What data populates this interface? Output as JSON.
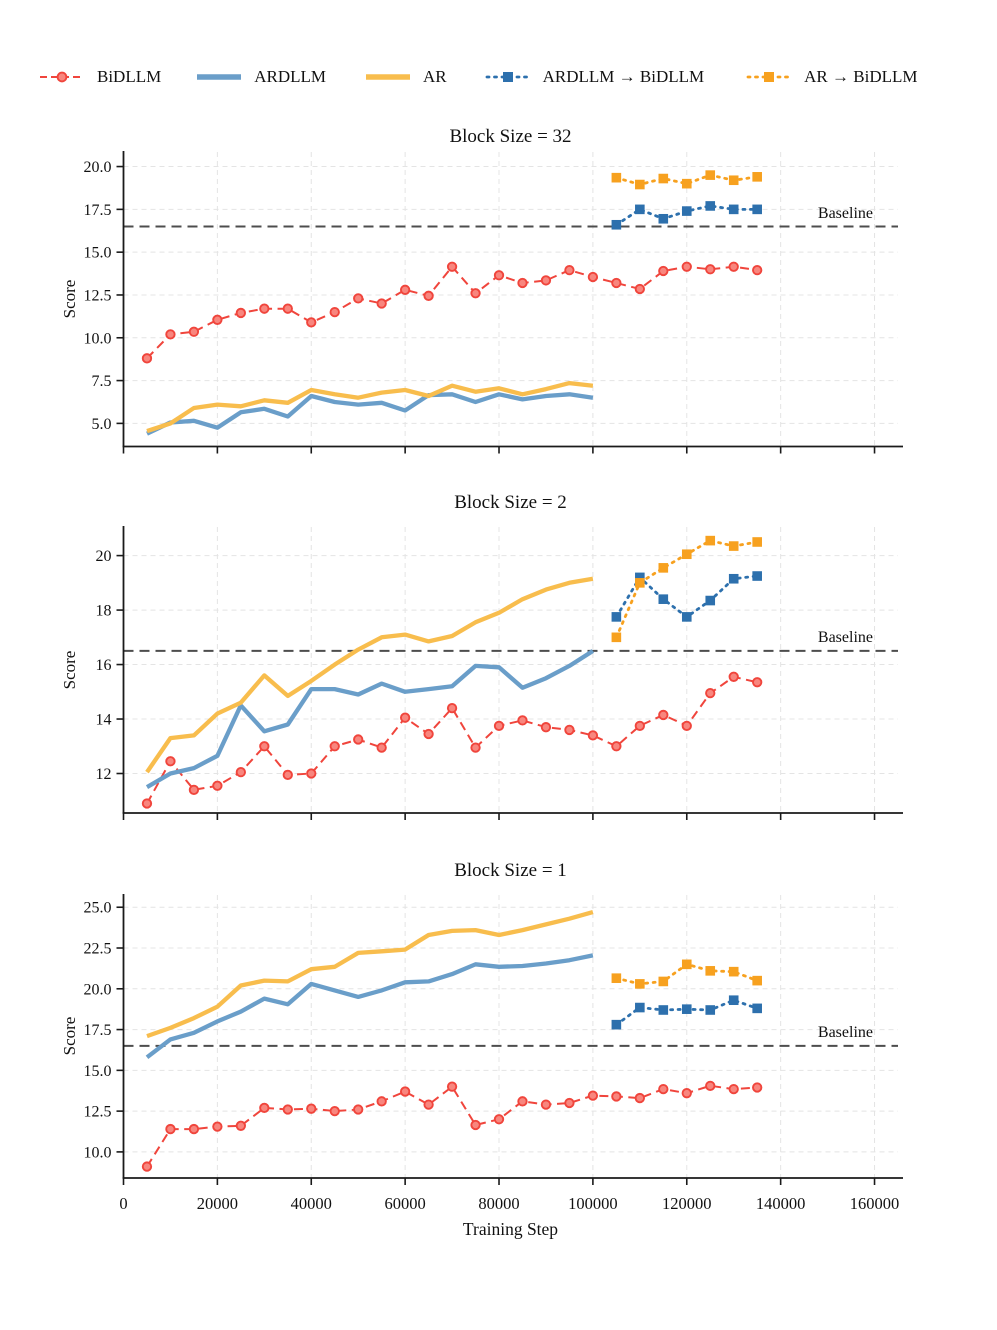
{
  "legend": {
    "items": [
      {
        "id": "bidllm",
        "label": "BiDLLM",
        "color": "#f0453c",
        "marker_fill": "#f8867e",
        "style": "dashed-line-circle"
      },
      {
        "id": "ardllm",
        "label": "ARDLLM",
        "color": "#6a9ec9",
        "style": "solid-line"
      },
      {
        "id": "ar",
        "label": "AR",
        "color": "#f8bd4d",
        "style": "solid-line"
      },
      {
        "id": "ardllm-to-bidllm",
        "label": "ARDLLM → BiDLLM",
        "color": "#2d70ad",
        "style": "dotted-line-square"
      },
      {
        "id": "ar-to-bidllm",
        "label": "AR → BiDLLM",
        "color": "#f7a11f",
        "style": "dotted-line-square"
      }
    ]
  },
  "x_axis": {
    "label": "Training Step",
    "ticks": [
      0,
      20000,
      40000,
      60000,
      80000,
      100000,
      120000,
      140000,
      160000
    ],
    "tick_labels": [
      "0",
      "20000",
      "40000",
      "60000",
      "80000",
      "100000",
      "120000",
      "140000",
      "160000"
    ],
    "xlim": [
      0,
      165000
    ]
  },
  "chart_data": [
    {
      "type": "line",
      "title": "Block Size = 32",
      "ylabel": "Score",
      "xlabel": "",
      "baseline": {
        "label": "Baseline",
        "value": 16.5,
        "color": "#4d4d4d"
      },
      "ylim": [
        3.65,
        20.85
      ],
      "yticks": [
        5,
        7.5,
        10,
        12.5,
        15,
        17.5,
        20
      ],
      "ytick_labels": [
        "5.0",
        "7.5",
        "10.0",
        "12.5",
        "15.0",
        "17.5",
        "20.0"
      ],
      "grid": true,
      "series": [
        {
          "name": "BiDLLM",
          "color": "#f0453c",
          "line": "dashed",
          "marker": "circle",
          "x": [
            5000,
            10000,
            15000,
            20000,
            25000,
            30000,
            35000,
            40000,
            45000,
            50000,
            55000,
            60000,
            65000,
            70000,
            75000,
            80000,
            85000,
            90000,
            95000,
            100000,
            105000,
            110000,
            115000,
            120000,
            125000,
            130000,
            135000
          ],
          "values": [
            8.8,
            10.2,
            10.35,
            11.05,
            11.45,
            11.7,
            11.7,
            10.9,
            11.5,
            12.3,
            12.0,
            12.8,
            12.45,
            14.15,
            12.6,
            13.65,
            13.2,
            13.35,
            13.95,
            13.55,
            13.2,
            12.85,
            13.9,
            14.15,
            14.0,
            14.15,
            13.95
          ]
        },
        {
          "name": "ARDLLM",
          "color": "#6a9ec9",
          "line": "solid",
          "marker": "none",
          "x": [
            5000,
            10000,
            15000,
            20000,
            25000,
            30000,
            35000,
            40000,
            45000,
            50000,
            55000,
            60000,
            65000,
            70000,
            75000,
            80000,
            85000,
            90000,
            95000,
            100000
          ],
          "values": [
            4.4,
            5.05,
            5.15,
            4.75,
            5.65,
            5.85,
            5.4,
            6.6,
            6.25,
            6.1,
            6.2,
            5.75,
            6.65,
            6.7,
            6.25,
            6.7,
            6.4,
            6.6,
            6.7,
            6.5
          ]
        },
        {
          "name": "AR",
          "color": "#f8bd4d",
          "line": "solid",
          "marker": "none",
          "x": [
            5000,
            10000,
            15000,
            20000,
            25000,
            30000,
            35000,
            40000,
            45000,
            50000,
            55000,
            60000,
            65000,
            70000,
            75000,
            80000,
            85000,
            90000,
            95000,
            100000
          ],
          "values": [
            4.55,
            5.0,
            5.9,
            6.1,
            6.0,
            6.35,
            6.2,
            6.95,
            6.7,
            6.5,
            6.8,
            6.95,
            6.6,
            7.2,
            6.85,
            7.05,
            6.7,
            7.0,
            7.35,
            7.2
          ]
        },
        {
          "name": "ARDLLM → BiDLLM",
          "color": "#2d70ad",
          "line": "dotted",
          "marker": "square",
          "x": [
            105000,
            110000,
            115000,
            120000,
            125000,
            130000,
            135000
          ],
          "values": [
            16.6,
            17.5,
            16.95,
            17.4,
            17.7,
            17.5,
            17.5
          ]
        },
        {
          "name": "AR → BiDLLM",
          "color": "#f7a11f",
          "line": "dotted",
          "marker": "square",
          "x": [
            105000,
            110000,
            115000,
            120000,
            125000,
            130000,
            135000
          ],
          "values": [
            19.35,
            18.95,
            19.3,
            19.0,
            19.5,
            19.2,
            19.4
          ]
        }
      ]
    },
    {
      "type": "line",
      "title": "Block Size = 2",
      "ylabel": "Score",
      "xlabel": "",
      "baseline": {
        "label": "Baseline",
        "value": 16.5,
        "color": "#4d4d4d"
      },
      "ylim": [
        10.55,
        21.05
      ],
      "yticks": [
        12,
        14,
        16,
        18,
        20
      ],
      "ytick_labels": [
        "12",
        "14",
        "16",
        "18",
        "20"
      ],
      "grid": true,
      "series": [
        {
          "name": "BiDLLM",
          "color": "#f0453c",
          "line": "dashed",
          "marker": "circle",
          "x": [
            5000,
            10000,
            15000,
            20000,
            25000,
            30000,
            35000,
            40000,
            45000,
            50000,
            55000,
            60000,
            65000,
            70000,
            75000,
            80000,
            85000,
            90000,
            95000,
            100000,
            105000,
            110000,
            115000,
            120000,
            125000,
            130000,
            135000
          ],
          "values": [
            10.9,
            12.45,
            11.4,
            11.55,
            12.05,
            13.0,
            11.95,
            12.0,
            13.0,
            13.25,
            12.95,
            14.05,
            13.45,
            14.4,
            12.95,
            13.75,
            13.95,
            13.7,
            13.6,
            13.4,
            13.0,
            13.75,
            14.15,
            13.75,
            14.95,
            15.55,
            15.35
          ]
        },
        {
          "name": "ARDLLM",
          "color": "#6a9ec9",
          "line": "solid",
          "marker": "none",
          "x": [
            5000,
            10000,
            15000,
            20000,
            25000,
            30000,
            35000,
            40000,
            45000,
            50000,
            55000,
            60000,
            65000,
            70000,
            75000,
            80000,
            85000,
            90000,
            95000,
            100000
          ],
          "values": [
            11.5,
            12.0,
            12.2,
            12.65,
            14.5,
            13.55,
            13.8,
            15.1,
            15.1,
            14.9,
            15.3,
            15.0,
            15.1,
            15.2,
            15.95,
            15.9,
            15.15,
            15.5,
            15.95,
            16.5
          ]
        },
        {
          "name": "AR",
          "color": "#f8bd4d",
          "line": "solid",
          "marker": "none",
          "x": [
            5000,
            10000,
            15000,
            20000,
            25000,
            30000,
            35000,
            40000,
            45000,
            50000,
            55000,
            60000,
            65000,
            70000,
            75000,
            80000,
            85000,
            90000,
            95000,
            100000
          ],
          "values": [
            12.05,
            13.3,
            13.4,
            14.2,
            14.6,
            15.6,
            14.85,
            15.4,
            16.0,
            16.55,
            17.0,
            17.1,
            16.85,
            17.05,
            17.55,
            17.9,
            18.4,
            18.75,
            19.0,
            19.15
          ]
        },
        {
          "name": "ARDLLM → BiDLLM",
          "color": "#2d70ad",
          "line": "dotted",
          "marker": "square",
          "x": [
            105000,
            110000,
            115000,
            120000,
            125000,
            130000,
            135000
          ],
          "values": [
            17.75,
            19.2,
            18.4,
            17.75,
            18.35,
            19.15,
            19.25
          ]
        },
        {
          "name": "AR → BiDLLM",
          "color": "#f7a11f",
          "line": "dotted",
          "marker": "square",
          "x": [
            105000,
            110000,
            115000,
            120000,
            125000,
            130000,
            135000
          ],
          "values": [
            17.0,
            19.0,
            19.55,
            20.05,
            20.55,
            20.35,
            20.5
          ]
        }
      ]
    },
    {
      "type": "line",
      "title": "Block Size = 1",
      "ylabel": "Score",
      "xlabel": "Training Step",
      "baseline": {
        "label": "Baseline",
        "value": 16.5,
        "color": "#4d4d4d"
      },
      "ylim": [
        8.4,
        25.75
      ],
      "yticks": [
        10,
        12.5,
        15,
        17.5,
        20,
        22.5,
        25
      ],
      "ytick_labels": [
        "10.0",
        "12.5",
        "15.0",
        "17.5",
        "20.0",
        "22.5",
        "25.0"
      ],
      "grid": true,
      "series": [
        {
          "name": "BiDLLM",
          "color": "#f0453c",
          "line": "dashed",
          "marker": "circle",
          "x": [
            5000,
            10000,
            15000,
            20000,
            25000,
            30000,
            35000,
            40000,
            45000,
            50000,
            55000,
            60000,
            65000,
            70000,
            75000,
            80000,
            85000,
            90000,
            95000,
            100000,
            105000,
            110000,
            115000,
            120000,
            125000,
            130000,
            135000
          ],
          "values": [
            9.1,
            11.4,
            11.4,
            11.55,
            11.6,
            12.7,
            12.6,
            12.65,
            12.5,
            12.6,
            13.1,
            13.7,
            12.9,
            14.0,
            11.65,
            12.0,
            13.1,
            12.9,
            13.0,
            13.45,
            13.4,
            13.3,
            13.85,
            13.6,
            14.05,
            13.85,
            13.95
          ]
        },
        {
          "name": "ARDLLM",
          "color": "#6a9ec9",
          "line": "solid",
          "marker": "none",
          "x": [
            5000,
            10000,
            15000,
            20000,
            25000,
            30000,
            35000,
            40000,
            45000,
            50000,
            55000,
            60000,
            65000,
            70000,
            75000,
            80000,
            85000,
            90000,
            95000,
            100000
          ],
          "values": [
            15.8,
            16.9,
            17.3,
            18.0,
            18.6,
            19.4,
            19.05,
            20.3,
            19.9,
            19.5,
            19.9,
            20.4,
            20.45,
            20.9,
            21.5,
            21.35,
            21.4,
            21.55,
            21.75,
            22.05
          ]
        },
        {
          "name": "AR",
          "color": "#f8bd4d",
          "line": "solid",
          "marker": "none",
          "x": [
            5000,
            10000,
            15000,
            20000,
            25000,
            30000,
            35000,
            40000,
            45000,
            50000,
            55000,
            60000,
            65000,
            70000,
            75000,
            80000,
            85000,
            90000,
            95000,
            100000
          ],
          "values": [
            17.1,
            17.6,
            18.2,
            18.9,
            20.2,
            20.5,
            20.45,
            21.2,
            21.35,
            22.2,
            22.3,
            22.4,
            23.3,
            23.55,
            23.6,
            23.3,
            23.6,
            23.95,
            24.3,
            24.7
          ]
        },
        {
          "name": "ARDLLM → BiDLLM",
          "color": "#2d70ad",
          "line": "dotted",
          "marker": "square",
          "x": [
            105000,
            110000,
            115000,
            120000,
            125000,
            130000,
            135000
          ],
          "values": [
            17.8,
            18.85,
            18.7,
            18.75,
            18.7,
            19.3,
            18.8
          ]
        },
        {
          "name": "AR → BiDLLM",
          "color": "#f7a11f",
          "line": "dotted",
          "marker": "square",
          "x": [
            105000,
            110000,
            115000,
            120000,
            125000,
            130000,
            135000
          ],
          "values": [
            20.65,
            20.3,
            20.45,
            21.5,
            21.1,
            21.05,
            20.5
          ]
        }
      ]
    }
  ]
}
